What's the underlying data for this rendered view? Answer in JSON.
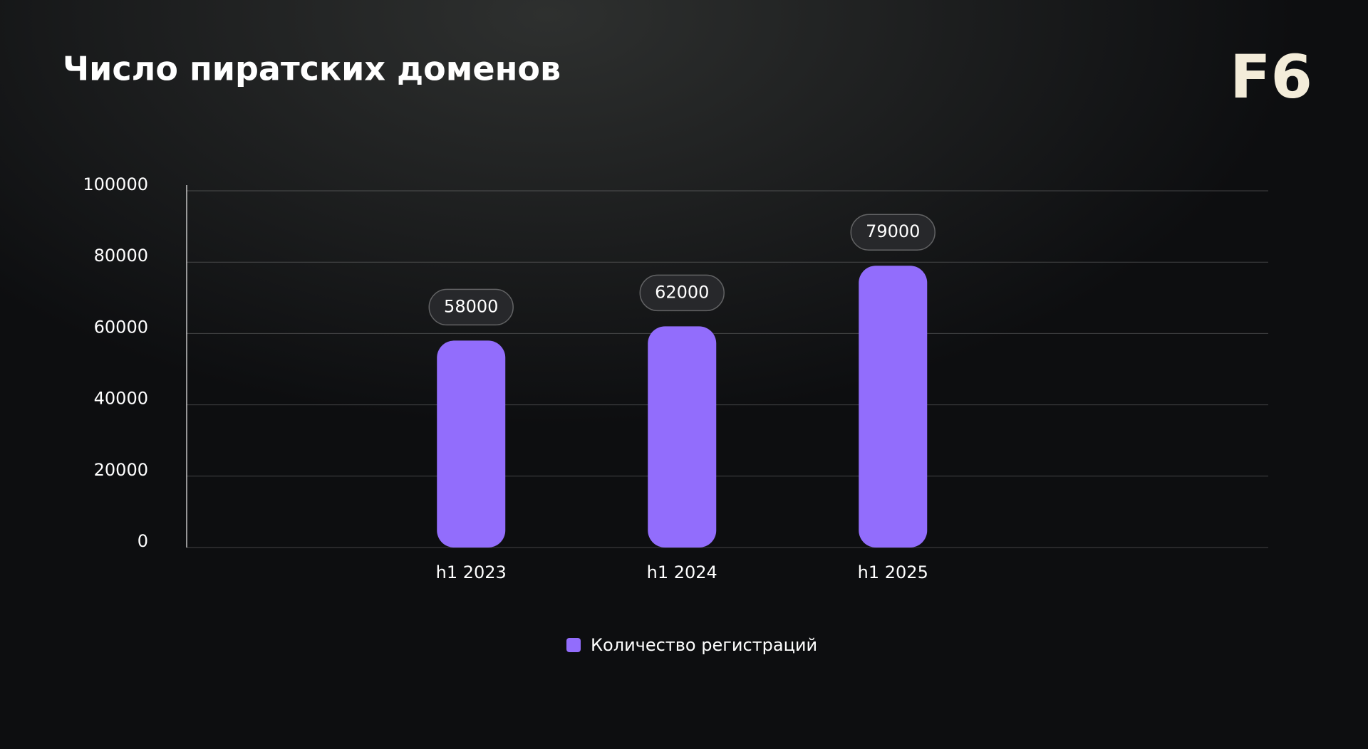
{
  "chart_data": {
    "type": "bar",
    "title": "Число пиратских доменов",
    "logo": "F6",
    "categories": [
      "h1 2023",
      "h1 2024",
      "h1 2025"
    ],
    "series": [
      {
        "name": "Количество регистраций",
        "color": "#926dfc",
        "values": [
          58000,
          62000,
          79000
        ]
      }
    ],
    "ylim": [
      0,
      100000
    ],
    "yticks": [
      0,
      20000,
      40000,
      60000,
      80000,
      100000
    ],
    "grid": true,
    "data_labels": true,
    "legend": "bottom"
  }
}
